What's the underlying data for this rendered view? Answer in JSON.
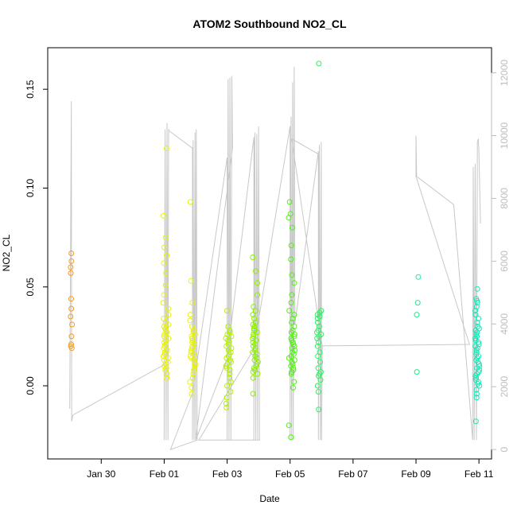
{
  "chart_data": {
    "type": "scatter",
    "title": "ATOM2 Southbound NO2_CL",
    "xlabel": "Date",
    "ylabel": "NO2_CL",
    "x_axis": {
      "range_days": [
        28.3,
        42.4
      ],
      "ticks": [
        {
          "label": "Jan 30",
          "day": 30
        },
        {
          "label": "Feb 01",
          "day": 32
        },
        {
          "label": "Feb 03",
          "day": 34
        },
        {
          "label": "Feb 05",
          "day": 36
        },
        {
          "label": "Feb 07",
          "day": 38
        },
        {
          "label": "Feb 09",
          "day": 40
        },
        {
          "label": "Feb 11",
          "day": 42
        }
      ]
    },
    "y_axis_left": {
      "range": [
        -0.037,
        0.171
      ],
      "ticks": [
        {
          "label": "0.00",
          "value": 0.0
        },
        {
          "label": "0.05",
          "value": 0.05
        },
        {
          "label": "0.10",
          "value": 0.1
        },
        {
          "label": "0.15",
          "value": 0.15
        }
      ]
    },
    "y_axis_right": {
      "color": "#bdbdbd",
      "range": [
        -300,
        12800
      ],
      "ticks": [
        {
          "label": "0",
          "value": 0
        },
        {
          "label": "2000",
          "value": 2000
        },
        {
          "label": "4000",
          "value": 4000
        },
        {
          "label": "6000",
          "value": 6000
        },
        {
          "label": "8000",
          "value": 8000
        },
        {
          "label": "10000",
          "value": 10000
        },
        {
          "label": "12000",
          "value": 12000
        }
      ]
    },
    "grid": false,
    "legend": "none",
    "series": [
      {
        "color": "#f39c24",
        "day": 29.05,
        "spread": 0.03,
        "values": [
          0.067,
          0.063,
          0.06,
          0.057,
          0.044,
          0.039,
          0.035,
          0.031,
          0.025,
          0.021,
          0.02,
          0.019
        ]
      },
      {
        "color": "#e6f20c",
        "day": 32.05,
        "spread": 0.09,
        "values": [
          0.12,
          0.086,
          0.075,
          0.07,
          0.066,
          0.062,
          0.057,
          0.051,
          0.046,
          0.042,
          0.039,
          0.036,
          0.034,
          0.032,
          0.031,
          0.03,
          0.029,
          0.028,
          0.027,
          0.026,
          0.025,
          0.024,
          0.023,
          0.022,
          0.021,
          0.02,
          0.019,
          0.018,
          0.017,
          0.016,
          0.015,
          0.014,
          0.013,
          0.012,
          0.011,
          0.01,
          0.009,
          0.008,
          0.006,
          0.004
        ]
      },
      {
        "color": "#e6f20c",
        "day": 32.9,
        "spread": 0.09,
        "values": [
          0.093,
          0.053,
          0.042,
          0.036,
          0.033,
          0.03,
          0.028,
          0.027,
          0.026,
          0.025,
          0.024,
          0.023,
          0.022,
          0.021,
          0.02,
          0.019,
          0.018,
          0.017,
          0.016,
          0.015,
          0.014,
          0.013,
          0.012,
          0.011,
          0.01,
          0.009,
          0.008,
          0.006,
          0.004,
          0.002,
          -0.001,
          -0.004
        ]
      },
      {
        "color": "#b4f000",
        "day": 34.05,
        "spread": 0.09,
        "values": [
          0.038,
          0.03,
          0.028,
          0.027,
          0.026,
          0.025,
          0.024,
          0.023,
          0.022,
          0.021,
          0.02,
          0.019,
          0.018,
          0.017,
          0.016,
          0.015,
          0.014,
          0.013,
          0.012,
          0.011,
          0.01,
          0.009,
          0.008,
          0.006,
          0.004,
          0.002,
          0.0,
          -0.003,
          -0.006,
          -0.009,
          -0.011
        ]
      },
      {
        "color": "#8cf000",
        "day": 34.9,
        "spread": 0.09,
        "values": [
          0.065,
          0.058,
          0.052,
          0.046,
          0.04,
          0.038,
          0.036,
          0.034,
          0.032,
          0.031,
          0.03,
          0.029,
          0.028,
          0.027,
          0.026,
          0.025,
          0.024,
          0.023,
          0.022,
          0.021,
          0.02,
          0.019,
          0.018,
          0.017,
          0.016,
          0.015,
          0.014,
          0.013,
          0.012,
          0.011,
          0.01,
          0.009,
          0.008,
          0.007,
          0.006,
          0.004,
          -0.004
        ]
      },
      {
        "color": "#50f014",
        "day": 36.05,
        "spread": 0.1,
        "values": [
          0.093,
          0.087,
          0.085,
          0.08,
          0.071,
          0.064,
          0.056,
          0.052,
          0.046,
          0.042,
          0.038,
          0.036,
          0.034,
          0.032,
          0.03,
          0.028,
          0.027,
          0.026,
          0.025,
          0.024,
          0.023,
          0.022,
          0.021,
          0.02,
          0.019,
          0.018,
          0.017,
          0.016,
          0.015,
          0.014,
          0.013,
          0.012,
          0.011,
          0.01,
          0.009,
          0.008,
          0.007,
          0.006,
          0.002,
          -0.001,
          -0.02,
          -0.026
        ]
      },
      {
        "color": "#2cf064",
        "day": 36.92,
        "spread": 0.07,
        "values": [
          0.163,
          0.038,
          0.037,
          0.036,
          0.035,
          0.034,
          0.032,
          0.03,
          0.028,
          0.027,
          0.026,
          0.025,
          0.024,
          0.022,
          0.02,
          0.017,
          0.015,
          0.012,
          0.009,
          0.007,
          0.006,
          0.005,
          0.003,
          0.0,
          -0.003,
          -0.012
        ]
      },
      {
        "color": "#18ee90",
        "day": 40.05,
        "spread": 0.03,
        "values": [
          0.055,
          0.042,
          0.036,
          0.007
        ]
      },
      {
        "color": "#14e8b4",
        "day": 41.95,
        "spread": 0.07,
        "values": [
          0.049,
          0.044,
          0.043,
          0.042,
          0.04,
          0.038,
          0.036,
          0.034,
          0.032,
          0.03,
          0.029,
          0.028,
          0.027,
          0.026,
          0.025,
          0.024,
          0.023,
          0.022,
          0.021,
          0.02,
          0.019,
          0.018,
          0.017,
          0.016,
          0.015,
          0.014,
          0.013,
          0.012,
          0.011,
          0.01,
          0.009,
          0.008,
          0.007,
          0.006,
          0.005,
          0.004,
          0.003,
          0.002,
          0.001,
          0.0,
          -0.002,
          -0.004,
          -0.006,
          -0.018
        ]
      }
    ],
    "secondary_line": {
      "color": "#c8c8c8",
      "points": [
        [
          29.0,
          1300
        ],
        [
          29.05,
          11100
        ],
        [
          29.06,
          900
        ],
        [
          29.1,
          1100
        ],
        [
          32.0,
          2700
        ],
        [
          32.0,
          300
        ],
        [
          32.03,
          10200
        ],
        [
          32.06,
          300
        ],
        [
          32.09,
          10400
        ],
        [
          32.12,
          300
        ],
        [
          32.14,
          10200
        ],
        [
          32.16,
          10150
        ],
        [
          32.9,
          9600
        ],
        [
          32.9,
          300
        ],
        [
          32.92,
          9850
        ],
        [
          32.95,
          300
        ],
        [
          32.98,
          10100
        ],
        [
          33.0,
          300
        ],
        [
          33.02,
          10200
        ],
        [
          33.05,
          300
        ],
        [
          32.2,
          0
        ],
        [
          32.9,
          1800
        ],
        [
          34.0,
          9300
        ],
        [
          34.0,
          300
        ],
        [
          34.03,
          11800
        ],
        [
          34.06,
          300
        ],
        [
          34.09,
          11850
        ],
        [
          34.12,
          300
        ],
        [
          34.15,
          11900
        ],
        [
          34.17,
          9600
        ],
        [
          33.0,
          300
        ],
        [
          34.0,
          2900
        ],
        [
          34.85,
          9950
        ],
        [
          34.85,
          300
        ],
        [
          34.88,
          10100
        ],
        [
          34.91,
          300
        ],
        [
          34.94,
          10050
        ],
        [
          34.97,
          300
        ],
        [
          35.0,
          10300
        ],
        [
          35.03,
          300
        ],
        [
          33.1,
          300
        ],
        [
          34.85,
          3200
        ],
        [
          36.0,
          10300
        ],
        [
          36.0,
          300
        ],
        [
          36.03,
          10600
        ],
        [
          36.05,
          300
        ],
        [
          36.08,
          11700
        ],
        [
          36.1,
          300
        ],
        [
          36.13,
          12200
        ],
        [
          36.15,
          4000
        ],
        [
          36.9,
          9500
        ],
        [
          36.9,
          300
        ],
        [
          36.93,
          9700
        ],
        [
          36.96,
          300
        ],
        [
          36.99,
          9800
        ],
        [
          37.0,
          300
        ],
        [
          37.02,
          3300
        ],
        [
          36.05,
          9900
        ],
        [
          36.92,
          9400
        ],
        [
          36.95,
          3300
        ],
        [
          41.7,
          3350
        ],
        [
          40.0,
          8700
        ],
        [
          40.0,
          10000
        ],
        [
          40.02,
          8700
        ],
        [
          41.2,
          7800
        ],
        [
          41.8,
          300
        ],
        [
          41.82,
          9000
        ],
        [
          41.85,
          300
        ],
        [
          41.88,
          9100
        ],
        [
          41.92,
          300
        ],
        [
          41.95,
          9800
        ],
        [
          41.98,
          9900
        ],
        [
          42.0,
          9400
        ],
        [
          42.05,
          7200
        ]
      ]
    }
  }
}
